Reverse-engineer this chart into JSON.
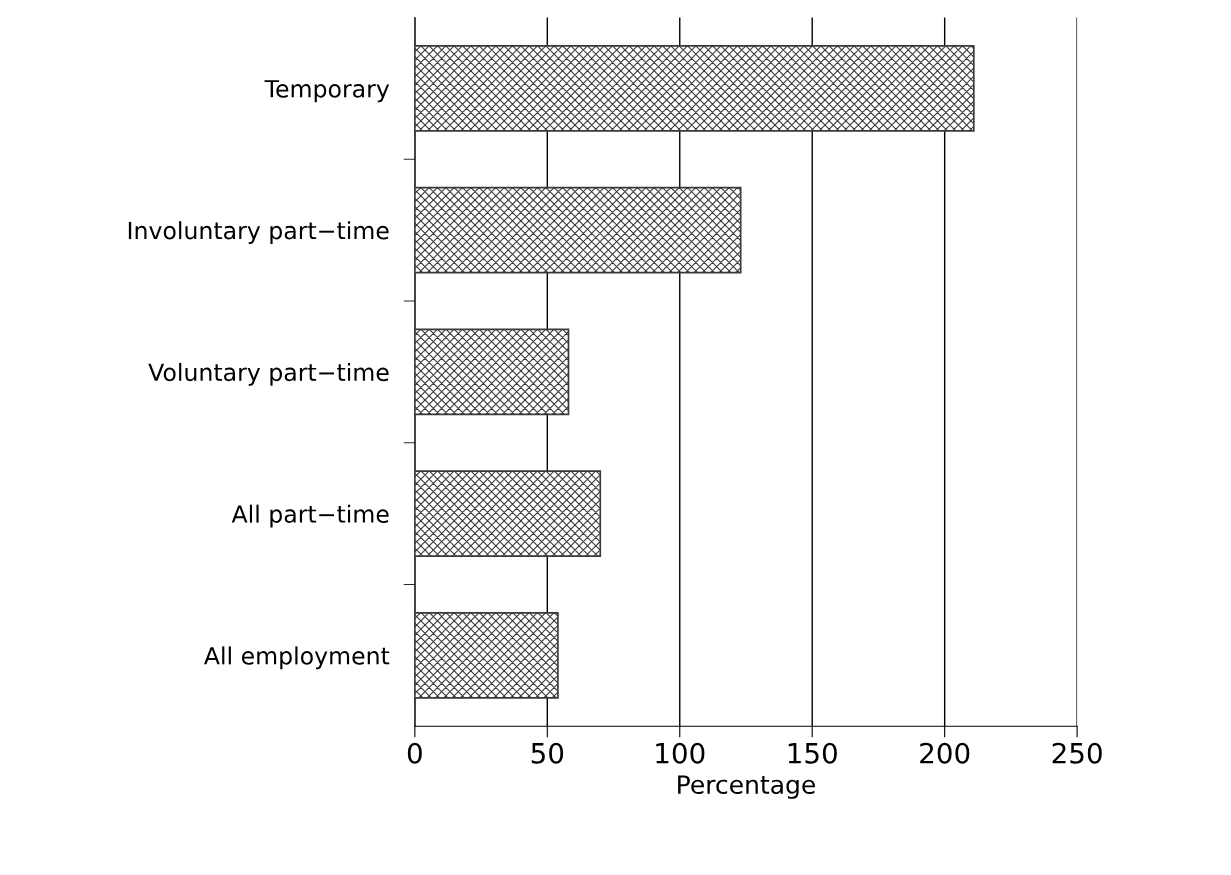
{
  "chart_data": {
    "type": "bar",
    "orientation": "horizontal",
    "categories": [
      "Temporary",
      "Involuntary part−time",
      "Voluntary part−time",
      "All part−time",
      "All employment"
    ],
    "values": [
      211,
      123,
      58,
      70,
      54
    ],
    "color": "#3a3a3a",
    "xlabel": "Percentage",
    "xlim": [
      0,
      250
    ],
    "xticks": [
      0,
      50,
      100,
      150,
      200,
      250
    ],
    "grid": "x"
  }
}
